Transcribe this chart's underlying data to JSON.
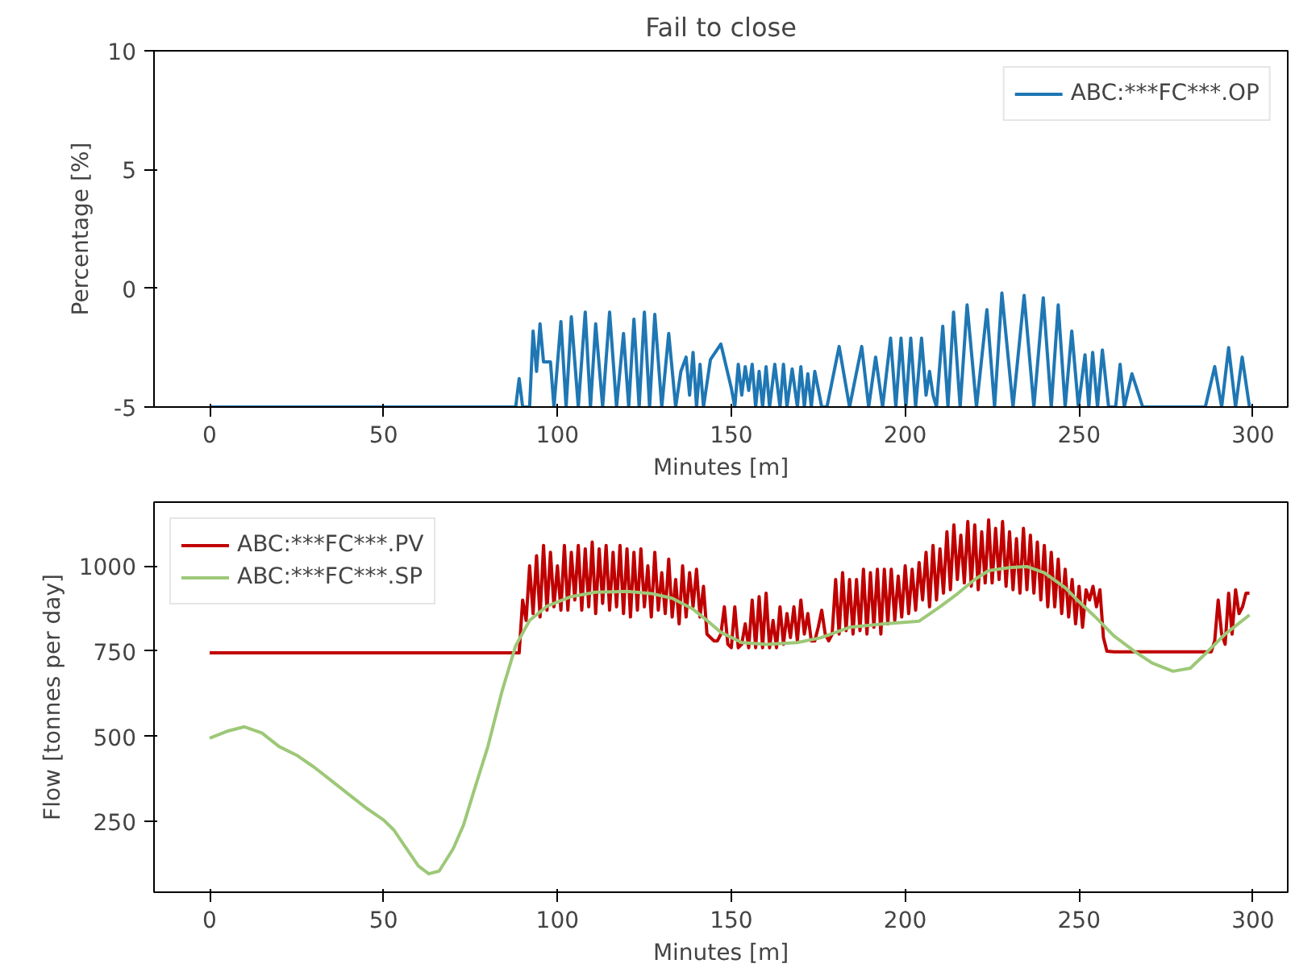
{
  "chart_data": [
    {
      "type": "line",
      "title": "Fail to close",
      "xlabel": "Minutes [m]",
      "ylabel": "Percentage [%]",
      "xlim": [
        -16,
        310
      ],
      "ylim": [
        -5,
        10
      ],
      "xticks": [
        0,
        50,
        100,
        150,
        200,
        250,
        300
      ],
      "yticks": [
        -5,
        0,
        5,
        10
      ],
      "legend": "top right",
      "grid": false,
      "series": [
        {
          "name": "ABC:***FC***.OP",
          "color": "#1f77b4",
          "x": [
            0,
            88,
            89,
            90,
            92,
            93,
            94,
            95,
            96,
            98,
            99,
            101,
            102.5,
            104,
            106,
            108,
            109.5,
            111,
            113,
            115,
            117,
            119,
            120.5,
            122,
            123.5,
            125,
            126.5,
            128,
            130,
            132,
            134,
            135.5,
            137,
            138,
            139,
            140,
            141,
            142,
            144,
            147,
            150,
            151,
            152,
            153,
            154,
            155,
            156,
            157,
            158,
            159,
            160,
            161,
            162.5,
            164,
            165,
            166,
            167.5,
            169,
            170,
            171,
            172,
            173,
            174,
            176,
            177.5,
            181,
            184,
            187.5,
            189.5,
            191.5,
            193.5,
            195.8,
            197.3,
            198.8,
            200.2,
            201.6,
            203,
            204.7,
            206,
            207,
            208,
            209,
            210.8,
            212.3,
            213.9,
            215.8,
            217.8,
            220.5,
            223.5,
            225.7,
            227.8,
            231,
            234.2,
            237,
            239.7,
            242,
            244,
            246,
            247.9,
            249.8,
            251.7,
            252.8,
            253.9,
            255.3,
            256.7,
            258.5,
            260.5,
            261.8,
            263,
            265.2,
            268.3,
            286.3,
            289,
            291,
            293,
            295,
            296.9,
            299
          ],
          "values": [
            -5,
            -5,
            -3.8,
            -5,
            -5,
            -1.8,
            -3.5,
            -1.5,
            -3.1,
            -3.1,
            -5,
            -1.4,
            -5,
            -1.2,
            -5,
            -1.0,
            -5,
            -1.5,
            -5,
            -1.0,
            -5,
            -1.9,
            -5,
            -1.3,
            -5,
            -1.0,
            -5,
            -1.1,
            -5,
            -1.9,
            -5,
            -3.5,
            -2.9,
            -4.5,
            -2.7,
            -5,
            -3.2,
            -5,
            -3.0,
            -2.35,
            -4.2,
            -5,
            -3.2,
            -4.5,
            -3.3,
            -4.3,
            -3.2,
            -5,
            -3.5,
            -5,
            -3.3,
            -5,
            -3.2,
            -5,
            -3.2,
            -5,
            -3.4,
            -5,
            -3.3,
            -5,
            -3.6,
            -5,
            -3.5,
            -5,
            -5,
            -2.45,
            -5,
            -2.45,
            -5,
            -2.9,
            -5,
            -2.1,
            -5,
            -2.1,
            -5,
            -2.1,
            -5,
            -2.1,
            -4.5,
            -3.5,
            -4.5,
            -5,
            -1.6,
            -5,
            -1.0,
            -5,
            -0.7,
            -5,
            -0.9,
            -5,
            -0.2,
            -5,
            -0.3,
            -5,
            -0.4,
            -5,
            -0.7,
            -5,
            -1.8,
            -5,
            -2.8,
            -5,
            -2.7,
            -5,
            -2.6,
            -5,
            -5,
            -3.2,
            -5,
            -3.6,
            -5,
            -5,
            -3.3,
            -5,
            -2.5,
            -5,
            -2.9,
            -5
          ]
        }
      ]
    },
    {
      "type": "line",
      "xlabel": "Minutes [m]",
      "ylabel": "Flow [tonnes per day]",
      "xlim": [
        -16,
        310
      ],
      "ylim": [
        43,
        1187
      ],
      "xticks": [
        0,
        50,
        100,
        150,
        200,
        250,
        300
      ],
      "yticks": [
        250,
        500,
        750,
        1000
      ],
      "legend": "top left",
      "grid": false,
      "series": [
        {
          "name": "ABC:***FC***.PV",
          "color": "#c00000",
          "x": [
            0,
            88,
            89,
            90,
            91,
            92,
            93,
            94,
            95,
            96,
            97,
            98,
            99,
            100,
            101,
            102,
            103,
            104,
            105,
            106,
            107,
            108,
            109,
            110,
            111,
            112,
            113,
            114,
            115,
            116,
            117,
            118,
            119,
            120,
            121,
            122,
            123,
            124,
            125,
            126,
            127,
            128,
            129,
            130,
            131,
            132,
            133,
            134,
            135,
            136,
            137,
            138,
            139,
            140,
            141,
            142,
            143,
            144,
            145,
            146,
            147,
            148,
            149,
            150,
            151,
            152,
            153,
            154,
            155,
            156,
            157,
            158,
            159,
            160,
            161,
            162,
            163,
            164,
            165,
            166,
            167,
            168,
            169,
            170,
            171,
            172,
            173,
            174,
            175,
            176,
            177,
            178,
            179,
            180,
            181,
            182,
            183,
            184,
            185,
            186,
            187,
            188,
            189,
            190,
            191,
            192,
            193,
            194,
            195,
            196,
            197,
            198,
            199,
            200,
            201,
            202,
            203,
            204,
            205,
            206,
            207,
            208,
            209,
            210,
            211,
            212,
            213,
            214,
            215,
            216,
            217,
            218,
            219,
            220,
            221,
            222,
            223,
            224,
            225,
            226,
            227,
            228,
            229,
            230,
            231,
            232,
            233,
            234,
            235,
            236,
            237,
            238,
            239,
            240,
            241,
            242,
            243,
            244,
            245,
            246,
            247,
            248,
            249,
            250,
            251,
            252,
            253,
            254,
            255,
            256,
            257,
            258,
            260,
            288,
            289,
            290,
            291,
            292,
            293,
            294,
            295,
            296,
            297,
            298,
            299
          ],
          "values": [
            745,
            745,
            745,
            900,
            840,
            1000,
            860,
            1030,
            850,
            1060,
            870,
            1040,
            880,
            1000,
            870,
            1060,
            870,
            1040,
            900,
            1060,
            870,
            1050,
            880,
            1070,
            860,
            1050,
            890,
            1060,
            870,
            1040,
            880,
            1060,
            860,
            1050,
            850,
            1040,
            870,
            1050,
            880,
            1000,
            850,
            1040,
            870,
            980,
            860,
            1020,
            850,
            960,
            830,
            1000,
            850,
            980,
            880,
            990,
            850,
            940,
            800,
            790,
            780,
            780,
            800,
            880,
            770,
            760,
            880,
            760,
            770,
            830,
            760,
            900,
            760,
            910,
            760,
            920,
            760,
            840,
            760,
            880,
            770,
            860,
            790,
            880,
            780,
            900,
            800,
            860,
            780,
            780,
            820,
            870,
            800,
            780,
            800,
            960,
            800,
            980,
            810,
            960,
            800,
            960,
            810,
            990,
            800,
            980,
            820,
            990,
            800,
            990,
            830,
            990,
            840,
            970,
            850,
            1000,
            860,
            990,
            870,
            1010,
            900,
            1040,
            880,
            1060,
            900,
            1050,
            920,
            1100,
            930,
            1120,
            960,
            1090,
            950,
            1130,
            940,
            1120,
            930,
            1100,
            950,
            1135,
            950,
            1110,
            960,
            1130,
            940,
            1100,
            930,
            1080,
            920,
            1110,
            930,
            1090,
            920,
            1070,
            900,
            1060,
            880,
            1040,
            880,
            1020,
            860,
            990,
            850,
            960,
            830,
            940,
            820,
            930,
            900,
            940,
            880,
            930,
            790,
            750,
            748,
            748,
            780,
            900,
            800,
            770,
            920,
            800,
            930,
            860,
            880,
            920,
            920
          ]
        },
        {
          "name": "ABC:***FC***.SP",
          "color": "#9dc878",
          "x": [
            0,
            5,
            10,
            15,
            20,
            25,
            30,
            35,
            40,
            45,
            50,
            53,
            56,
            60,
            63,
            66,
            70,
            73,
            76,
            80,
            84,
            88,
            92,
            97,
            104,
            111,
            120,
            127,
            133,
            139,
            143,
            147,
            153,
            160,
            169,
            176,
            184,
            194,
            204,
            210,
            215,
            220,
            224,
            230,
            235,
            240,
            246,
            250,
            255,
            260,
            266,
            271,
            277,
            282,
            286,
            292,
            299
          ],
          "values": [
            495,
            515,
            528,
            510,
            470,
            445,
            410,
            370,
            330,
            290,
            255,
            225,
            180,
            120,
            97,
            105,
            170,
            240,
            340,
            470,
            630,
            766,
            840,
            882,
            910,
            923,
            925,
            919,
            905,
            873,
            840,
            805,
            775,
            770,
            775,
            790,
            820,
            830,
            838,
            880,
            918,
            960,
            986,
            995,
            998,
            980,
            936,
            895,
            847,
            795,
            749,
            715,
            691,
            700,
            739,
            800,
            856
          ]
        }
      ]
    }
  ]
}
